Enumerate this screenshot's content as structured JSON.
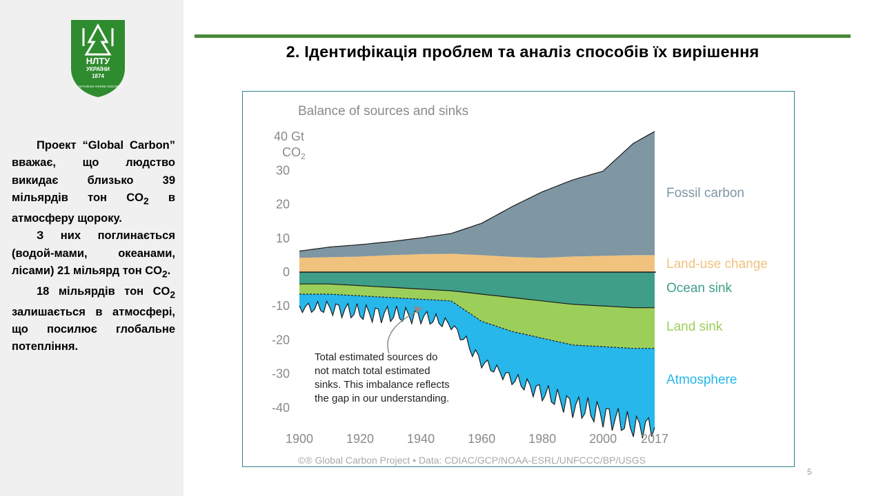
{
  "slide": {
    "title": "2. Ідентифікація проблем та аналіз способів їх вирішення",
    "page_number": "5",
    "accent_color": "#4a8a3a"
  },
  "logo": {
    "icon": "nltu-fir-tree-logo",
    "text_lines": [
      "НЛТУ",
      "УКРАЇНИ",
      "1874",
      "AD NATURAM VIVERE DISCIMUS"
    ],
    "color": "#2e8b2e"
  },
  "body": {
    "p1_pre": "Проект “Global Carbon” вважає, що людство викидає близько 39 мільярдів тон CO",
    "p1_sub": "2",
    "p1_post": " в атмосферу щороку.",
    "p2_pre": "З них поглинається (водой-мами, океанами, лісами) 21 мільярд тон CO",
    "p2_sub": "2",
    "p2_post": ".",
    "p3_pre": "18 мільярдів тон CO",
    "p3_sub": "2",
    "p3_post": " залишається в атмосфері, що посилює глобальне потепління."
  },
  "chart_data": {
    "type": "area",
    "title": "Balance of sources and sinks",
    "ylabel_line1": "40 Gt",
    "ylabel_line2": "CO",
    "ylabel_sub": "2",
    "x_ticks": [
      "1900",
      "1920",
      "1940",
      "1960",
      "1980",
      "2000",
      "2017"
    ],
    "y_ticks": [
      "30",
      "20",
      "10",
      "0",
      "-10",
      "-20",
      "-30",
      "-40"
    ],
    "xlim": [
      1900,
      2017
    ],
    "ylim": [
      -42,
      42
    ],
    "x": [
      1900,
      1910,
      1920,
      1930,
      1940,
      1950,
      1960,
      1970,
      1980,
      1990,
      2000,
      2010,
      2017
    ],
    "series": [
      {
        "name": "Fossil carbon",
        "color": "#7f96a3",
        "values": [
          2,
          3,
          3.5,
          4,
          4.8,
          6,
          9.4,
          14.8,
          19.5,
          22.6,
          25,
          33,
          36.5
        ]
      },
      {
        "name": "Land-use change",
        "color": "#f1c27d",
        "values": [
          4.2,
          4.4,
          4.6,
          5,
          5.3,
          5.4,
          5,
          4.5,
          4.2,
          4.6,
          4.8,
          5,
          5
        ]
      },
      {
        "name": "Ocean sink",
        "color": "#3f9e88",
        "values": [
          -3.5,
          -3.5,
          -4,
          -4.5,
          -5,
          -5.5,
          -6.5,
          -7.5,
          -8.5,
          -9.5,
          -10,
          -10.5,
          -10.5
        ]
      },
      {
        "name": "Land sink",
        "color": "#9ccf5a",
        "values": [
          -3,
          -3,
          -3,
          -3,
          -3,
          -3,
          -8,
          -10,
          -11,
          -12,
          -12,
          -12,
          -12
        ]
      },
      {
        "name": "Atmosphere",
        "color": "#27b7ea",
        "values": [
          -4,
          -4,
          -5,
          -5,
          -5,
          -7,
          -12,
          -14,
          -16,
          -18,
          -20,
          -23,
          -23
        ]
      }
    ],
    "annotation": [
      "Total estimated sources do",
      "not match total estimated",
      "sinks. This imbalance reflects",
      "the gap in our understanding."
    ],
    "source": "©® Global Carbon Project  •  Data: CDIAC/GCP/NOAA-ESRL/UNFCCC/BP/USGS",
    "legend_placement": "right",
    "grid": false
  }
}
